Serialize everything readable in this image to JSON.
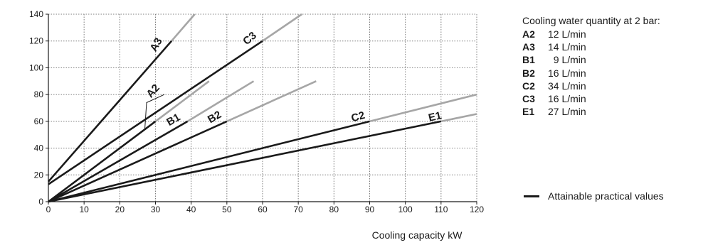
{
  "chart_data": {
    "type": "line",
    "title": "",
    "xlabel": "Cooling capacity kW",
    "ylabel": "",
    "xlim": [
      0,
      120
    ],
    "ylim": [
      0,
      140
    ],
    "xticks": [
      0,
      10,
      20,
      30,
      40,
      50,
      60,
      70,
      80,
      90,
      100,
      110,
      120
    ],
    "yticks": [
      0,
      20,
      40,
      60,
      80,
      100,
      120,
      140
    ],
    "grid": true,
    "series": [
      {
        "name": "A3",
        "attainable": [
          [
            0,
            15
          ],
          [
            34.5,
            120
          ]
        ],
        "extended": [
          [
            34.5,
            120
          ],
          [
            41,
            140
          ]
        ]
      },
      {
        "name": "C3",
        "attainable": [
          [
            0,
            13
          ],
          [
            60,
            120
          ]
        ],
        "extended": [
          [
            60,
            120
          ],
          [
            71,
            140
          ]
        ]
      },
      {
        "name": "A2",
        "attainable": [
          [
            0,
            0
          ],
          [
            30,
            60
          ]
        ],
        "extended": [
          [
            30,
            60
          ],
          [
            45,
            90
          ]
        ]
      },
      {
        "name": "B1",
        "attainable": [
          [
            0,
            0
          ],
          [
            39,
            60
          ]
        ],
        "extended": [
          [
            39,
            60
          ],
          [
            57.5,
            90
          ]
        ]
      },
      {
        "name": "B2",
        "attainable": [
          [
            0,
            0
          ],
          [
            50,
            60
          ]
        ],
        "extended": [
          [
            50,
            60
          ],
          [
            75,
            90
          ]
        ]
      },
      {
        "name": "C2",
        "attainable": [
          [
            0,
            0
          ],
          [
            90,
            60
          ]
        ],
        "extended": [
          [
            90,
            60
          ],
          [
            120,
            80
          ]
        ]
      },
      {
        "name": "E1",
        "attainable": [
          [
            0,
            0
          ],
          [
            110,
            60
          ]
        ],
        "extended": [
          [
            110,
            60
          ],
          [
            120,
            65.5
          ]
        ]
      }
    ],
    "labels": [
      {
        "text": "A3",
        "x": 31,
        "y": 116,
        "angle": -60
      },
      {
        "text": "C3",
        "x": 57,
        "y": 120,
        "angle": -40
      },
      {
        "text": "A2",
        "x": 30,
        "y": 81,
        "angle": -48
      },
      {
        "text": "B1",
        "x": 35.5,
        "y": 59,
        "angle": -30
      },
      {
        "text": "B2",
        "x": 47,
        "y": 61,
        "angle": -30
      },
      {
        "text": "C2",
        "x": 87,
        "y": 61,
        "angle": -16
      },
      {
        "text": "E1",
        "x": 108.5,
        "y": 61,
        "angle": -13
      }
    ],
    "colors": {
      "attainable": "#1a1a1a",
      "extended": "#a6a6a6",
      "grid": "#7f7f7f"
    },
    "legend": {
      "title": "Cooling water quantity at 2 bar:",
      "entries": [
        {
          "code": "A2",
          "value": "12 L/min"
        },
        {
          "code": "A3",
          "value": "14 L/min"
        },
        {
          "code": "B1",
          "value": "  9 L/min"
        },
        {
          "code": "B2",
          "value": "16 L/min"
        },
        {
          "code": "C2",
          "value": "34 L/min"
        },
        {
          "code": "C3",
          "value": "16 L/min"
        },
        {
          "code": "E1",
          "value": "27 L/min"
        }
      ],
      "practical_label": "Attainable practical values",
      "placement": "right"
    }
  }
}
